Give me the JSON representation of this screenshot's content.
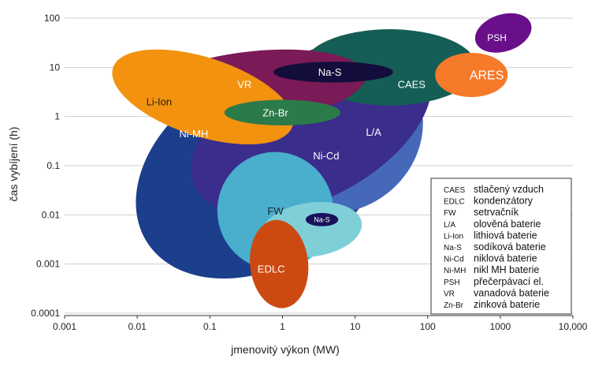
{
  "chart_data": {
    "type": "region",
    "title": "",
    "xlabel": "jmenovitý výkon (MW)",
    "ylabel": "čas vybíjení (h)",
    "xscale": "log",
    "yscale": "log",
    "xlim": [
      0.001,
      10000
    ],
    "ylim": [
      0.0001,
      100
    ],
    "grid": "horizontal",
    "x_ticks": [
      {
        "value": 0.001,
        "label": "0.001"
      },
      {
        "value": 0.01,
        "label": "0.01"
      },
      {
        "value": 0.1,
        "label": "0.1"
      },
      {
        "value": 1,
        "label": "1"
      },
      {
        "value": 10,
        "label": "10"
      },
      {
        "value": 100,
        "label": "100"
      },
      {
        "value": 1000,
        "label": "1000"
      },
      {
        "value": 10000,
        "label": "10,000"
      }
    ],
    "y_ticks": [
      {
        "value": 0.0001,
        "label": "0.0001"
      },
      {
        "value": 0.001,
        "label": "0.001"
      },
      {
        "value": 0.01,
        "label": "0.01"
      },
      {
        "value": 0.1,
        "label": "0.1"
      },
      {
        "value": 1,
        "label": "1"
      },
      {
        "value": 10,
        "label": "10"
      },
      {
        "value": 100,
        "label": "100"
      }
    ],
    "regions": [
      {
        "name": "Ni-MH",
        "color": "#1c3f8c",
        "center": [
          0.5,
          0.08
        ],
        "x_span_decades": 3.7,
        "y_span_decades": 3.9,
        "angle": -32,
        "label": "Ni-MH",
        "label_at": [
          0.06,
          0.45
        ],
        "label_color": "#ffffff",
        "label_size": 13
      },
      {
        "name": "L/A",
        "color": "#4568b8",
        "center": [
          6,
          0.5
        ],
        "x_span_decades": 2.4,
        "y_span_decades": 3.2,
        "angle": -38,
        "label": "L/A",
        "label_at": [
          18,
          0.48
        ],
        "label_color": "#ffffff",
        "label_size": 13
      },
      {
        "name": "Ni-Cd",
        "color": "#3a2d8c",
        "center": [
          2.5,
          0.6
        ],
        "x_span_decades": 3.6,
        "y_span_decades": 2.9,
        "angle": -28,
        "label": "Ni-Cd",
        "label_at": [
          4,
          0.16
        ],
        "label_color": "#ffffff",
        "label_size": 13
      },
      {
        "name": "FW",
        "color": "#4aaecd",
        "center": [
          0.8,
          0.012
        ],
        "x_span_decades": 1.6,
        "y_span_decades": 2.4,
        "angle": -12,
        "label": "FW",
        "label_at": [
          0.8,
          0.012
        ],
        "label_color": "#222222",
        "label_size": 13
      },
      {
        "name": "FW2",
        "color": "#7fcfd9",
        "center": [
          2.5,
          0.005
        ],
        "x_span_decades": 1.4,
        "y_span_decades": 1.1,
        "angle": -8,
        "label": "",
        "label_at": [
          2.5,
          0.005
        ],
        "label_color": "#222222",
        "label_size": 1
      },
      {
        "name": "EDLC",
        "color": "#cc4a12",
        "center": [
          0.9,
          0.001
        ],
        "x_span_decades": 0.8,
        "y_span_decades": 1.8,
        "angle": -6,
        "label": "EDLC",
        "label_at": [
          0.7,
          0.0008
        ],
        "label_color": "#ffffff",
        "label_size": 13
      },
      {
        "name": "CAES",
        "color": "#145e56",
        "center": [
          30,
          10
        ],
        "x_span_decades": 2.4,
        "y_span_decades": 1.55,
        "angle": 0,
        "label": "CAES",
        "label_at": [
          60,
          4.5
        ],
        "label_color": "#ffffff",
        "label_size": 13
      },
      {
        "name": "VR",
        "color": "#7a1a57",
        "center": [
          0.4,
          4
        ],
        "x_span_decades": 3.1,
        "y_span_decades": 1.45,
        "angle": -6,
        "label": "VR",
        "label_at": [
          0.3,
          4.5
        ],
        "label_color": "#ffffff",
        "label_size": 13
      },
      {
        "name": "Li-Ion",
        "color": "#f2920f",
        "center": [
          0.08,
          2.5
        ],
        "x_span_decades": 2.6,
        "y_span_decades": 1.6,
        "angle": 18,
        "label": "Li-Ion",
        "label_at": [
          0.02,
          2
        ],
        "label_color": "#222222",
        "label_size": 13
      },
      {
        "name": "Zn-Br",
        "color": "#2a7a4a",
        "center": [
          1,
          1.2
        ],
        "x_span_decades": 1.6,
        "y_span_decades": 0.52,
        "angle": 0,
        "label": "Zn-Br",
        "label_at": [
          0.8,
          1.2
        ],
        "label_color": "#ffffff",
        "label_size": 13
      },
      {
        "name": "Na-S",
        "color": "#120d3a",
        "center": [
          5,
          8
        ],
        "x_span_decades": 1.65,
        "y_span_decades": 0.42,
        "angle": 0,
        "label": "Na-S",
        "label_at": [
          4.5,
          8
        ],
        "label_color": "#ffffff",
        "label_size": 13
      },
      {
        "name": "Na-S small",
        "color": "#18125a",
        "center": [
          3.5,
          0.008
        ],
        "x_span_decades": 0.45,
        "y_span_decades": 0.27,
        "angle": 0,
        "label": "Na-S",
        "label_at": [
          3.5,
          0.008
        ],
        "label_color": "#ffffff",
        "label_size": 9
      },
      {
        "name": "ARES",
        "color": "#f57a2a",
        "center": [
          400,
          7
        ],
        "x_span_decades": 1.0,
        "y_span_decades": 0.9,
        "angle": 0,
        "label": "ARES",
        "label_at": [
          650,
          7
        ],
        "label_color": "#ffffff",
        "label_size": 16
      },
      {
        "name": "PSH",
        "color": "#6a0f8a",
        "center": [
          1100,
          50
        ],
        "x_span_decades": 0.8,
        "y_span_decades": 0.75,
        "angle": -18,
        "label": "PSH",
        "label_at": [
          900,
          40
        ],
        "label_color": "#ffffff",
        "label_size": 12
      }
    ],
    "legend": {
      "placement": "bottom-right",
      "entries": [
        {
          "abbr": "CAES",
          "desc": "stlačený vzduch"
        },
        {
          "abbr": "EDLC",
          "desc": "kondenzátory"
        },
        {
          "abbr": "FW",
          "desc": "setrvačník"
        },
        {
          "abbr": "L/A",
          "desc": "olověná baterie"
        },
        {
          "abbr": "Li-Ion",
          "desc": "lithiová baterie"
        },
        {
          "abbr": "Na-S",
          "desc": "sodíková baterie"
        },
        {
          "abbr": "Ni-Cd",
          "desc": "niklová baterie"
        },
        {
          "abbr": "Ni-MH",
          "desc": "nikl MH baterie"
        },
        {
          "abbr": "PSH",
          "desc": "přečerpávací el."
        },
        {
          "abbr": "VR",
          "desc": "vanadová baterie"
        },
        {
          "abbr": "Zn-Br",
          "desc": "zinková baterie"
        }
      ]
    }
  }
}
